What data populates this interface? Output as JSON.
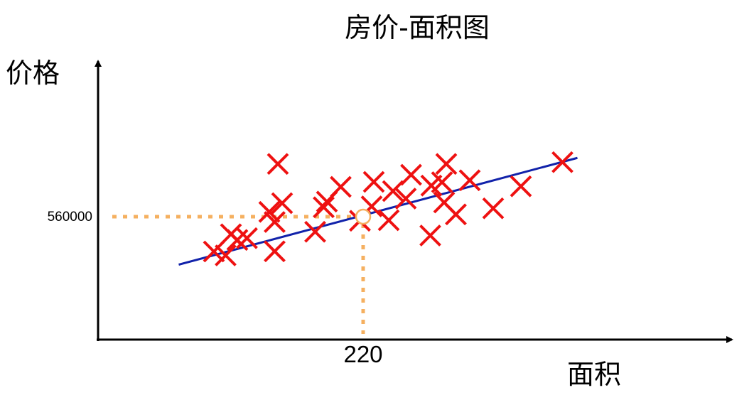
{
  "chart_data": {
    "type": "scatter",
    "title": "房价-面积图",
    "xlabel": "面积",
    "ylabel": "价格",
    "colors": {
      "points": "#ee1111",
      "fit_line": "#1122aa",
      "highlight": "#f5b060",
      "axis": "#000000"
    },
    "points": [
      {
        "x": 80,
        "y": 364000
      },
      {
        "x": 91,
        "y": 342000
      },
      {
        "x": 96,
        "y": 461000
      },
      {
        "x": 102,
        "y": 429000
      },
      {
        "x": 111,
        "y": 439000
      },
      {
        "x": 132,
        "y": 587000
      },
      {
        "x": 137,
        "y": 530000
      },
      {
        "x": 137,
        "y": 365000
      },
      {
        "x": 140,
        "y": 857000
      },
      {
        "x": 144,
        "y": 636000
      },
      {
        "x": 175,
        "y": 475000
      },
      {
        "x": 183,
        "y": 613000
      },
      {
        "x": 186,
        "y": 645000
      },
      {
        "x": 199,
        "y": 728000
      },
      {
        "x": 217,
        "y": 537000
      },
      {
        "x": 228,
        "y": 618000
      },
      {
        "x": 230,
        "y": 756000
      },
      {
        "x": 244,
        "y": 540000
      },
      {
        "x": 248,
        "y": 704000
      },
      {
        "x": 260,
        "y": 662000
      },
      {
        "x": 265,
        "y": 796000
      },
      {
        "x": 283,
        "y": 454000
      },
      {
        "x": 284,
        "y": 735000
      },
      {
        "x": 294,
        "y": 754000
      },
      {
        "x": 296,
        "y": 640000
      },
      {
        "x": 298,
        "y": 857000
      },
      {
        "x": 307,
        "y": 573000
      },
      {
        "x": 320,
        "y": 765000
      },
      {
        "x": 342,
        "y": 607000
      },
      {
        "x": 368,
        "y": 731000
      },
      {
        "x": 407,
        "y": 867000
      }
    ],
    "fit_line": [
      {
        "x": 47,
        "y": 290000
      },
      {
        "x": 421,
        "y": 891000
      }
    ],
    "highlight": {
      "x": 220,
      "y": 560000
    },
    "x_ticks": [
      "220"
    ],
    "y_ticks": [
      "560000"
    ]
  }
}
